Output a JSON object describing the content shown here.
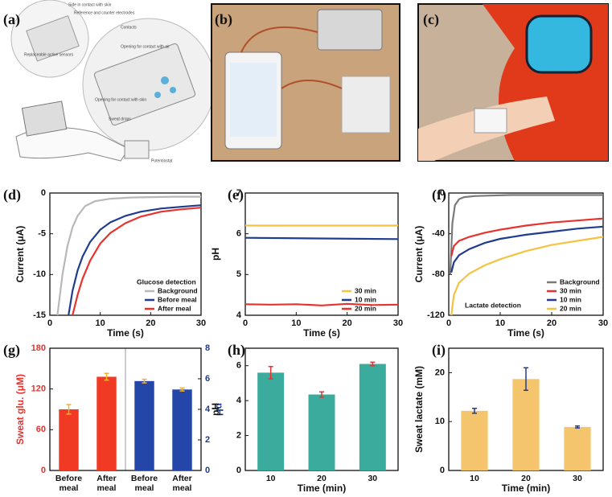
{
  "panels": [
    {
      "label": "(a)",
      "texts": [
        "Side in contact with skin",
        "Reference and counter electrodes",
        "Replaceable active sensors",
        "Contacts",
        "Opening for contact with air",
        "Opening for contact with skin",
        "Sweat drops",
        "Potentiostat"
      ]
    },
    {
      "label": "(b)"
    },
    {
      "label": "(c)"
    }
  ],
  "chart_data": [
    {
      "type": "line",
      "label": "(d)",
      "xlabel": "Time (s)",
      "ylabel": "Current (μA)",
      "xlim": [
        0,
        30
      ],
      "xticks": [
        0,
        10,
        20,
        30
      ],
      "ylim": [
        -15,
        0
      ],
      "yticks": [
        0,
        -5,
        -10,
        -15
      ],
      "annotation": "Glucose detection",
      "legend": "lower right",
      "series": [
        {
          "name": "Background",
          "color": "#b8b8b8",
          "x": [
            1.5,
            2.5,
            3.5,
            4.5,
            5.5,
            7,
            9,
            12,
            16,
            20,
            25,
            30
          ],
          "values": [
            -15,
            -10,
            -6.5,
            -4.2,
            -2.8,
            -1.6,
            -1.0,
            -0.7,
            -0.55,
            -0.5,
            -0.45,
            -0.45
          ]
        },
        {
          "name": "Before meal",
          "color": "#1f3c8f",
          "x": [
            3.7,
            4.5,
            5.5,
            6.5,
            8,
            10,
            12,
            15,
            18,
            22,
            26,
            30
          ],
          "values": [
            -15,
            -12,
            -9.5,
            -7.8,
            -6,
            -4.5,
            -3.6,
            -2.8,
            -2.3,
            -1.9,
            -1.7,
            -1.5
          ]
        },
        {
          "name": "After meal",
          "color": "#e8322d",
          "x": [
            4.5,
            5.5,
            6.5,
            8,
            10,
            12,
            15,
            18,
            22,
            26,
            30
          ],
          "values": [
            -15,
            -12.5,
            -10.5,
            -8.3,
            -6.2,
            -4.9,
            -3.7,
            -2.9,
            -2.3,
            -2.0,
            -1.8
          ]
        }
      ]
    },
    {
      "type": "line",
      "label": "(e)",
      "xlabel": "Time (s)",
      "ylabel": "pH",
      "xlim": [
        0,
        30
      ],
      "xticks": [
        0,
        10,
        20,
        30
      ],
      "ylim": [
        4,
        7
      ],
      "yticks": [
        4,
        5,
        6,
        7
      ],
      "legend": "lower right",
      "series": [
        {
          "name": "30 min",
          "color": "#f5c242",
          "x": [
            0,
            30
          ],
          "values": [
            6.2,
            6.2
          ]
        },
        {
          "name": "10 min",
          "color": "#1f3c8f",
          "x": [
            0,
            30
          ],
          "values": [
            5.9,
            5.87
          ]
        },
        {
          "name": "20 min",
          "color": "#e8322d",
          "x": [
            0,
            5,
            10,
            15,
            20,
            25,
            30
          ],
          "values": [
            4.27,
            4.26,
            4.27,
            4.24,
            4.28,
            4.25,
            4.26
          ]
        }
      ]
    },
    {
      "type": "line",
      "label": "(f)",
      "xlabel": "Time (s)",
      "ylabel": "Current (μA)",
      "xlim": [
        0,
        30
      ],
      "xticks": [
        0,
        10,
        20,
        30
      ],
      "ylim": [
        -120,
        0
      ],
      "yticks": [
        0,
        -40,
        -80,
        -120
      ],
      "annotation": "Lactate detection",
      "legend": "lower right",
      "series": [
        {
          "name": "Background",
          "color": "#7a7a7a",
          "x": [
            0.3,
            0.7,
            1.2,
            2,
            3,
            5,
            8,
            12,
            20,
            30
          ],
          "values": [
            -80,
            -30,
            -12,
            -6,
            -4,
            -3,
            -2.5,
            -2,
            -2,
            -2
          ]
        },
        {
          "name": "30 min",
          "color": "#e8322d",
          "x": [
            0.5,
            1,
            2,
            4,
            7,
            10,
            15,
            20,
            25,
            30
          ],
          "values": [
            -62,
            -52,
            -47,
            -43,
            -39,
            -36,
            -32,
            -29,
            -27,
            -25
          ]
        },
        {
          "name": "10 min",
          "color": "#1f3c8f",
          "x": [
            0.5,
            1,
            2,
            4,
            7,
            10,
            15,
            20,
            25,
            30
          ],
          "values": [
            -78,
            -68,
            -61,
            -55,
            -49,
            -45,
            -41,
            -38,
            -35,
            -33
          ]
        },
        {
          "name": "20 min",
          "color": "#f5c242",
          "x": [
            0.5,
            1,
            2,
            4,
            7,
            10,
            15,
            20,
            25,
            30
          ],
          "values": [
            -120,
            -100,
            -88,
            -79,
            -71,
            -65,
            -57,
            -51,
            -47,
            -43
          ]
        }
      ]
    },
    {
      "type": "bar",
      "label": "(g)",
      "ylabel": "Sweat glu. (μM)",
      "y2label": "pH",
      "ylabel_color": "#e8322d",
      "y2label_color": "#1f3c8f",
      "categories": [
        "Before meal",
        "After meal",
        "Before meal",
        "After meal"
      ],
      "ylim": [
        0,
        180
      ],
      "yticks": [
        0,
        60,
        120,
        180
      ],
      "y2lim": [
        0,
        8
      ],
      "y2ticks": [
        0,
        2,
        4,
        6,
        8
      ],
      "series": [
        {
          "color": "#f03a24",
          "values": [
            90,
            138,
            null,
            null
          ],
          "errors": [
            7,
            5,
            null,
            null
          ],
          "error_color": "#f0b030"
        },
        {
          "color": "#2346a8",
          "axis": "y2",
          "values": [
            null,
            null,
            5.85,
            5.3
          ],
          "errors": [
            null,
            null,
            0.12,
            0.1
          ],
          "error_color": "#f0b030"
        }
      ]
    },
    {
      "type": "bar",
      "label": "(h)",
      "xlabel": "Time (min)",
      "ylabel": "pH",
      "categories": [
        "10",
        "20",
        "30"
      ],
      "ylim": [
        0,
        7
      ],
      "yticks": [
        0,
        2,
        4,
        6
      ],
      "series": [
        {
          "color": "#3aab9c",
          "values": [
            5.6,
            4.35,
            6.1
          ],
          "errors": [
            0.35,
            0.15,
            0.1
          ],
          "error_color": "#e8322d"
        }
      ]
    },
    {
      "type": "bar",
      "label": "(i)",
      "xlabel": "Time (min)",
      "ylabel": "Sweat lactate (mM)",
      "categories": [
        "10",
        "20",
        "30"
      ],
      "ylim": [
        0,
        25
      ],
      "yticks": [
        0,
        10,
        20
      ],
      "series": [
        {
          "color": "#f5c56e",
          "values": [
            12.2,
            18.7,
            8.9
          ],
          "errors": [
            0.5,
            2.3,
            0.2
          ],
          "error_color": "#1f3c8f"
        }
      ]
    }
  ]
}
